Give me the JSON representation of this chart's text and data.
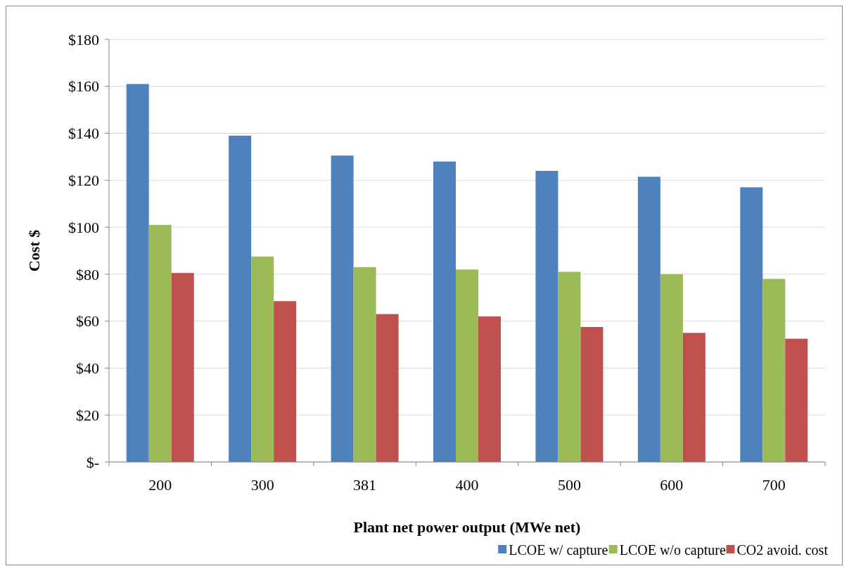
{
  "chart_data": {
    "type": "bar",
    "xlabel": "Plant net power output (MWe net)",
    "ylabel": "Cost $",
    "categories": [
      "200",
      "300",
      "381",
      "400",
      "500",
      "600",
      "700"
    ],
    "series": [
      {
        "name": "LCOE w/ capture",
        "color": "#4f81bd",
        "values": [
          161,
          139,
          130.5,
          128,
          124,
          121.5,
          117
        ]
      },
      {
        "name": "LCOE w/o capture",
        "color": "#9bbb59",
        "values": [
          101,
          87.5,
          83,
          82,
          81,
          80,
          78
        ]
      },
      {
        "name": "CO2 avoid. cost",
        "color": "#c0504d",
        "values": [
          80.5,
          68.5,
          63,
          62,
          57.5,
          55,
          52.5
        ]
      }
    ],
    "ylim": [
      0,
      180
    ],
    "yticks": [
      {
        "value": 0,
        "label": "$-"
      },
      {
        "value": 20,
        "label": "$20"
      },
      {
        "value": 40,
        "label": "$40"
      },
      {
        "value": 60,
        "label": "$60"
      },
      {
        "value": 80,
        "label": "$80"
      },
      {
        "value": 100,
        "label": "$100"
      },
      {
        "value": 120,
        "label": "$120"
      },
      {
        "value": 140,
        "label": "$140"
      },
      {
        "value": 160,
        "label": "$160"
      },
      {
        "value": 180,
        "label": "$180"
      }
    ],
    "grid": "y",
    "legend": "bottom right"
  }
}
